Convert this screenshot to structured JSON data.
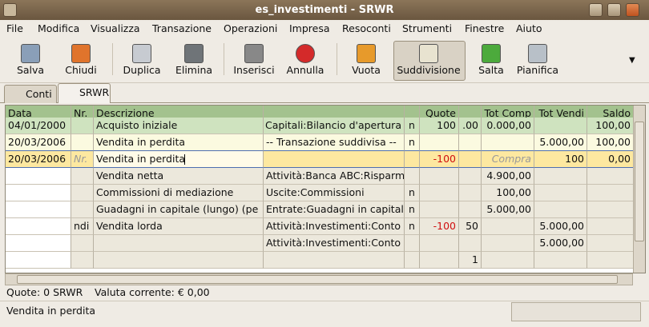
{
  "window": {
    "title": "es_investimenti - SRWR"
  },
  "menu": [
    "File",
    "Modifica",
    "Visualizza",
    "Transazione",
    "Operazioni",
    "Impresa",
    "Resoconti",
    "Strumenti",
    "Finestre",
    "Aiuto"
  ],
  "toolbar": [
    "Salva",
    "Chiudi",
    "Duplica",
    "Elimina",
    "Inserisci",
    "Annulla",
    "Vuota",
    "Suddivisione",
    "Salta",
    "Pianifica"
  ],
  "tabs": [
    "Conti",
    "SRWR"
  ],
  "register": {
    "headers": [
      "Data",
      "Nr.",
      "Descrizione",
      null,
      null,
      "Quote",
      null,
      "Tot Comp",
      "Tot Vendi",
      "Saldo"
    ],
    "rows": [
      [
        "04/01/2000",
        null,
        "Acquisto iniziale",
        "Capitali:Bilancio d'apertura",
        "n",
        "100",
        ".00",
        "0.000,00",
        null,
        "100,00"
      ],
      [
        "20/03/2006",
        null,
        "Vendita in perdita",
        "-- Transazione suddivisa --",
        "n",
        null,
        null,
        null,
        "5.000,00",
        "100,00"
      ],
      [
        "20/03/2006",
        "Nr.",
        "Vendita in perdita",
        null,
        null,
        "-100",
        null,
        "Compra",
        "100",
        "0,00"
      ],
      [
        null,
        null,
        "Vendita netta",
        "Attività:Banca ABC:Risparmi",
        null,
        null,
        null,
        "4.900,00",
        null,
        null
      ],
      [
        null,
        null,
        "Commissioni di mediazione",
        "Uscite:Commissioni",
        "n",
        null,
        null,
        "100,00",
        null,
        null
      ],
      [
        null,
        null,
        "Guadagni in capitale (lungo) (pe",
        "Entrate:Guadagni in capitale",
        "n",
        null,
        null,
        "5.000,00",
        null,
        null
      ],
      [
        null,
        "ndi",
        "Vendita lorda",
        "Attività:Investimenti:Conto",
        "n",
        "-100",
        "50",
        null,
        "5.000,00",
        null
      ],
      [
        null,
        null,
        null,
        "Attività:Investimenti:Conto",
        null,
        null,
        null,
        null,
        "5.000,00",
        null
      ],
      [
        null,
        null,
        null,
        null,
        null,
        null,
        "1",
        null,
        null,
        null
      ]
    ]
  },
  "summary": {
    "quote": "Quote: 0 SRWR",
    "valuta": "Valuta corrente: € 0,00"
  },
  "status": "Vendita in perdita"
}
